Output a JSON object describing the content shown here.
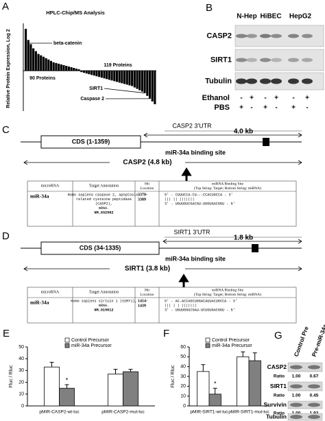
{
  "chart_data": [
    {
      "type": "bar",
      "panel": "A",
      "title": "HPLC-Chip/MS Analysis",
      "ylabel": "Relative Protein Expression, Log 2",
      "color": "#000000",
      "values": [
        3.0,
        2.2,
        1.9,
        1.6,
        1.4,
        1.2,
        1.1,
        1.0,
        0.9,
        0.8,
        0.7,
        0.6,
        0.55,
        0.5,
        0.45,
        0.4,
        0.35,
        0.3,
        0.25,
        0.2,
        0.15,
        0.1,
        -0.1,
        -0.15,
        -0.2,
        -0.25,
        -0.3,
        -0.35,
        -0.4,
        -0.45,
        -0.5,
        -0.55,
        -0.6,
        -0.65,
        -0.7,
        -0.75,
        -0.8,
        -0.85,
        -0.9,
        -0.95,
        -1.0,
        -1.05,
        -1.1,
        -1.2,
        -1.3,
        -1.4,
        -1.5,
        -1.6,
        -1.8,
        -2.0,
        -2.2,
        -2.4
      ],
      "annotations": [
        "beta-catenin",
        "90 Proteins",
        "119 Proteins",
        "SIRT1",
        "Caspase 2"
      ]
    },
    {
      "type": "grouped_bar",
      "panel": "E",
      "ylabel": "Fluc / Rluc",
      "categories": [
        "pMIR-CASP2-wt-luc",
        "pMIR-CASP2-mut-luc"
      ],
      "series": [
        {
          "name": "Control Precursor",
          "color": "#ffffff",
          "values": [
            33,
            27
          ],
          "errors": [
            4,
            4
          ]
        },
        {
          "name": "miR-34a Precursor",
          "color": "#808080",
          "values": [
            15,
            29
          ],
          "errors": [
            3,
            2
          ]
        }
      ],
      "ylim": [
        0,
        50
      ],
      "yticks": [
        0,
        10,
        20,
        30,
        40,
        50
      ],
      "annotations": [
        "*"
      ]
    },
    {
      "type": "grouped_bar",
      "panel": "F",
      "ylabel": "Fluc / Rluc",
      "categories": [
        "pMIR-SIRT1-wt-luc",
        "pMIR-SIRT1-mut-luc"
      ],
      "series": [
        {
          "name": "Control Precursor",
          "color": "#ffffff",
          "values": [
            35,
            50
          ],
          "errors": [
            7,
            5
          ]
        },
        {
          "name": "miR-34a Precursor",
          "color": "#808080",
          "values": [
            12,
            46
          ],
          "errors": [
            6,
            8
          ]
        }
      ],
      "ylim": [
        0,
        60
      ],
      "yticks": [
        0,
        10,
        20,
        30,
        40,
        50,
        60
      ],
      "annotations": [
        "*"
      ]
    }
  ],
  "blot_b": {
    "panel": "B",
    "columns": [
      "N-Hep",
      "HiBEC",
      "HepG2"
    ],
    "rows": [
      "CASP2",
      "SIRT1",
      "Tubulin"
    ],
    "treatments": [
      {
        "label": "Ethanol",
        "signs": [
          "-",
          "+",
          "-",
          "+",
          "-",
          "+"
        ]
      },
      {
        "label": "PBS",
        "signs": [
          "+",
          "-",
          "+",
          "-",
          "+",
          "-"
        ]
      }
    ]
  },
  "diagrams": [
    {
      "panel": "C",
      "utr_label": "CASP2 3'UTR",
      "cds": "CDS (1-1359)",
      "utr_length": "4.0 kb",
      "site_label": "miR-34a binding site",
      "gene_length": "CASP2 (4.8 kb)",
      "table": {
        "header": [
          "microRNA",
          "Target Annotation",
          [
            "Hit",
            "Location"
          ],
          [
            "miRNA Binding Site",
            "(Top String: Target; Bottom String: miRNA)"
          ]
        ],
        "row": [
          "miR-34a",
          [
            "Homo sapiens caspase 2, apoptosis-",
            "related cysteine peptidase",
            "(CASP2),",
            "mRNA.",
            "NM_032982"
          ],
          [
            "3370-",
            "3389"
          ],
          [
            "5' - CUUUCCA-CU---CCACUGCCA - 3'",
            "       ||| ||    |||||||",
            "3' - UGUUGUCGACGU-UGGUGACGGU - 5'"
          ]
        ]
      }
    },
    {
      "panel": "D",
      "utr_label": "SIRT1 3'UTR",
      "cds": "CDS (34-1335)",
      "utr_length": "1.8 kb",
      "site_label": "miR-34a binding site",
      "gene_length": "SIRT1 (3.8 kb)",
      "table": {
        "header": [
          "microRNA",
          "Target Annotation",
          [
            "Hit",
            "Location"
          ],
          [
            "miRNA Binding Site",
            "(Top String: Target; Bottom String: miRNA)"
          ]
        ],
        "row": [
          "miR-34a",
          [
            "Homo sapiens sirtuin 1 (SIRT1),",
            "mRNA.",
            "NM_019812"
          ],
          [
            "1414-",
            "1439"
          ],
          [
            "5' - AC-ACCAGCUGGACAUUACUGCCA - 3'",
            "      ||| |  |    |||||||",
            "3' - UGUUGGUCGAU-UCUGUGACGGU - 5'"
          ]
        ]
      }
    }
  ],
  "blot_g": {
    "panel": "G",
    "columns": [
      "Control Pre",
      "Pre-miR-34a"
    ],
    "rows": [
      {
        "label": "CASP2",
        "ratio_label": "Ratio",
        "ratios": [
          "1.00",
          "0.67"
        ]
      },
      {
        "label": "SIRT1",
        "ratio_label": "Ratio",
        "ratios": [
          "1.00",
          "0.45"
        ]
      },
      {
        "label": "Survivin",
        "ratio_label": "Ratio",
        "ratios": [
          "1.00",
          "1.92"
        ]
      },
      {
        "label": "Tubulin"
      }
    ]
  }
}
